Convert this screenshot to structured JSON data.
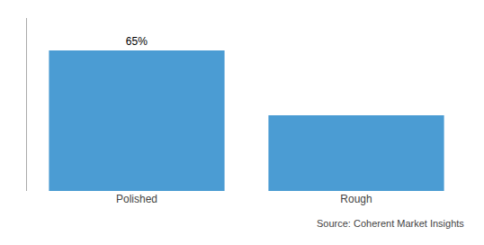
{
  "chart_data": {
    "type": "bar",
    "categories": [
      "Polished",
      "Rough"
    ],
    "values": [
      65,
      35
    ],
    "data_labels": true,
    "value_labels": [
      "65%",
      null
    ],
    "color": "#4B9CD3",
    "ylim": [
      0,
      80
    ],
    "tick_labels": "x",
    "grid": false,
    "annotations": [
      "Source: Coherent Market Insights"
    ]
  }
}
